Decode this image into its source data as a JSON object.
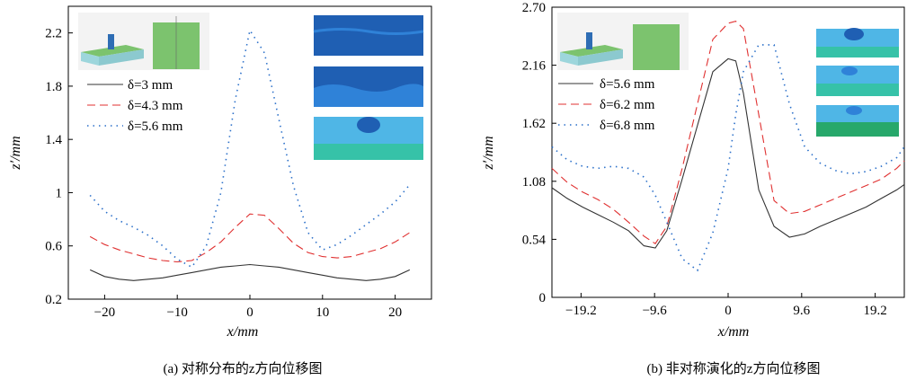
{
  "chart_data": [
    {
      "type": "line",
      "caption": "(a) 对称分布的z方向位移图",
      "xlabel": "x/mm",
      "ylabel": "z′/mm",
      "xlim": [
        -25,
        25
      ],
      "ylim": [
        0.2,
        2.4
      ],
      "xticks": [
        "−20",
        "−10",
        "0",
        "10",
        "20"
      ],
      "xtick_values": [
        -20,
        -10,
        0,
        10,
        20
      ],
      "yticks": [
        "0.2",
        "0.6",
        "1",
        "1.4",
        "1.8",
        "2.2"
      ],
      "ytick_values": [
        0.2,
        0.6,
        1.0,
        1.4,
        1.8,
        2.2
      ],
      "legend_position": "upper-left",
      "series": [
        {
          "name": "δ=3 mm",
          "style": "solid",
          "color": "#333333",
          "x": [
            -22,
            -20,
            -18,
            -16,
            -14,
            -12,
            -10,
            -8,
            -6,
            -4,
            -2,
            0,
            2,
            4,
            6,
            8,
            10,
            12,
            14,
            16,
            18,
            20,
            22
          ],
          "y": [
            0.42,
            0.37,
            0.35,
            0.34,
            0.35,
            0.36,
            0.38,
            0.4,
            0.42,
            0.44,
            0.45,
            0.46,
            0.45,
            0.44,
            0.42,
            0.4,
            0.38,
            0.36,
            0.35,
            0.34,
            0.35,
            0.37,
            0.42
          ]
        },
        {
          "name": "δ=4.3 mm",
          "style": "dashed",
          "color": "#e03030",
          "x": [
            -22,
            -20,
            -18,
            -16,
            -14,
            -12,
            -10,
            -8,
            -6,
            -4,
            -2,
            0,
            2,
            4,
            6,
            8,
            10,
            12,
            14,
            16,
            18,
            20,
            22
          ],
          "y": [
            0.67,
            0.61,
            0.57,
            0.54,
            0.51,
            0.49,
            0.48,
            0.49,
            0.55,
            0.63,
            0.74,
            0.84,
            0.83,
            0.73,
            0.62,
            0.55,
            0.52,
            0.51,
            0.52,
            0.55,
            0.58,
            0.63,
            0.7
          ]
        },
        {
          "name": "δ=5.6 mm",
          "style": "dotted",
          "color": "#2a6fc9",
          "x": [
            -22,
            -20,
            -18,
            -16,
            -14,
            -12,
            -10,
            -8,
            -6,
            -4,
            -2,
            0,
            2,
            4,
            6,
            8,
            10,
            12,
            14,
            16,
            18,
            20,
            22
          ],
          "y": [
            0.98,
            0.86,
            0.79,
            0.74,
            0.68,
            0.6,
            0.5,
            0.44,
            0.6,
            1.0,
            1.7,
            2.22,
            2.05,
            1.55,
            1.05,
            0.7,
            0.57,
            0.61,
            0.68,
            0.76,
            0.84,
            0.93,
            1.06
          ]
        }
      ]
    },
    {
      "type": "line",
      "caption": "(b) 非对称演化的z方向位移图",
      "xlabel": "x/mm",
      "ylabel": "z′/mm",
      "xlim": [
        -23,
        23
      ],
      "ylim": [
        0,
        2.7
      ],
      "xticks": [
        "−19.2",
        "−9.6",
        "0",
        "9.6",
        "19.2"
      ],
      "xtick_values": [
        -19.2,
        -9.6,
        0,
        9.6,
        19.2
      ],
      "yticks": [
        "0",
        "0.54",
        "1.08",
        "1.62",
        "2.16",
        "2.70"
      ],
      "ytick_values": [
        0,
        0.54,
        1.08,
        1.62,
        2.16,
        2.7
      ],
      "legend_position": "upper-left",
      "series": [
        {
          "name": "δ=5.6 mm",
          "style": "solid",
          "color": "#333333",
          "x": [
            -23,
            -21,
            -19,
            -17,
            -15,
            -13,
            -11,
            -9.5,
            -8,
            -6,
            -4,
            -2,
            0,
            1,
            2,
            4,
            6,
            8,
            10,
            12,
            14,
            16,
            18,
            20,
            22,
            23
          ],
          "y": [
            1.02,
            0.92,
            0.84,
            0.77,
            0.7,
            0.62,
            0.48,
            0.46,
            0.62,
            1.1,
            1.6,
            2.1,
            2.22,
            2.2,
            1.9,
            1.0,
            0.66,
            0.56,
            0.59,
            0.66,
            0.72,
            0.78,
            0.84,
            0.92,
            1.0,
            1.05
          ]
        },
        {
          "name": "δ=6.2 mm",
          "style": "dashed",
          "color": "#e03030",
          "x": [
            -23,
            -21,
            -19,
            -17,
            -15,
            -13,
            -11,
            -9.5,
            -8,
            -6,
            -4,
            -2,
            0,
            1,
            2,
            4,
            6,
            8,
            10,
            12,
            14,
            16,
            18,
            20,
            22,
            23
          ],
          "y": [
            1.2,
            1.07,
            0.98,
            0.91,
            0.82,
            0.7,
            0.57,
            0.5,
            0.66,
            1.2,
            1.8,
            2.4,
            2.55,
            2.57,
            2.5,
            1.7,
            0.9,
            0.78,
            0.8,
            0.86,
            0.92,
            0.98,
            1.04,
            1.1,
            1.2,
            1.27
          ]
        },
        {
          "name": "δ=6.8 mm",
          "style": "dotted",
          "color": "#2a6fc9",
          "x": [
            -23,
            -21,
            -19,
            -17,
            -15,
            -13,
            -11,
            -9.5,
            -8,
            -6,
            -4,
            -2,
            0,
            1,
            2,
            4,
            6,
            8,
            10,
            12,
            14,
            16,
            18,
            20,
            22,
            23
          ],
          "y": [
            1.4,
            1.28,
            1.22,
            1.2,
            1.22,
            1.2,
            1.12,
            0.95,
            0.7,
            0.36,
            0.25,
            0.6,
            1.2,
            1.7,
            2.1,
            2.35,
            2.35,
            1.8,
            1.4,
            1.25,
            1.18,
            1.15,
            1.17,
            1.22,
            1.3,
            1.4
          ]
        }
      ]
    }
  ],
  "insets": {
    "left_schematic": {
      "color_block": "#7cc36e",
      "color_plate": "#9dd6dc",
      "color_pillar": "#2e6db4"
    },
    "right_schematic": {
      "color_block": "#7cc36e",
      "color_plate": "#9dd6dc",
      "color_pillar": "#2e6db4"
    },
    "colors": {
      "dark_blue": "#1f5fb3",
      "mid_blue": "#2f82d8",
      "light_blue": "#4fb6e6",
      "teal": "#36c2a8",
      "green": "#27a86b"
    }
  }
}
